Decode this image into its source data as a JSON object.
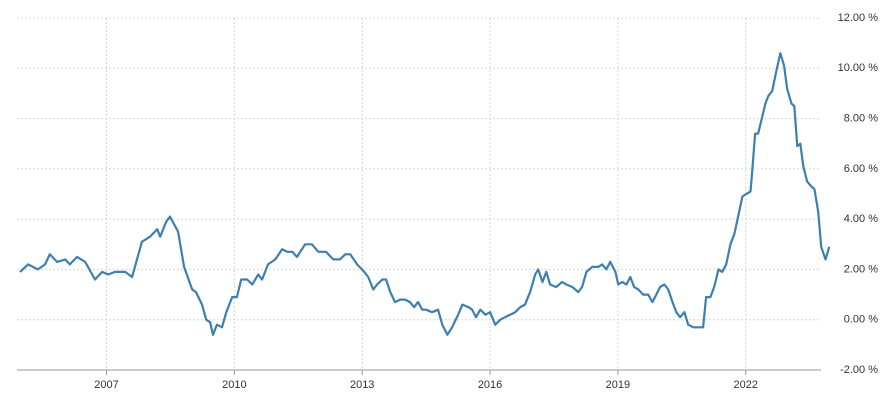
{
  "chart_data": {
    "type": "line",
    "color": "#3d7fae",
    "grid": true,
    "xlim": [
      2004.9,
      2024.0
    ],
    "xticks": [
      2007,
      2010,
      2013,
      2016,
      2019,
      2022
    ],
    "ylim": [
      -2,
      12
    ],
    "yticks": [
      {
        "value": -2,
        "label": "-2.00 %"
      },
      {
        "value": 0,
        "label": "0.00 %"
      },
      {
        "value": 2,
        "label": "2.00 %"
      },
      {
        "value": 4,
        "label": "4.00 %"
      },
      {
        "value": 6,
        "label": "6.00 %"
      },
      {
        "value": 8,
        "label": "8.00 %"
      },
      {
        "value": 10,
        "label": "10.00 %"
      },
      {
        "value": 12,
        "label": "12.00 %"
      }
    ],
    "x": [
      2004.97,
      2005.16,
      2005.39,
      2005.56,
      2005.67,
      2005.84,
      2006.03,
      2006.14,
      2006.31,
      2006.5,
      2006.73,
      2006.9,
      2007.04,
      2007.2,
      2007.44,
      2007.6,
      2007.83,
      2008.02,
      2008.19,
      2008.26,
      2008.4,
      2008.49,
      2008.68,
      2008.82,
      2009.01,
      2009.1,
      2009.24,
      2009.34,
      2009.43,
      2009.5,
      2009.59,
      2009.71,
      2009.81,
      2009.95,
      2010.06,
      2010.16,
      2010.3,
      2010.42,
      2010.56,
      2010.65,
      2010.79,
      2010.96,
      2011.12,
      2011.24,
      2011.36,
      2011.47,
      2011.66,
      2011.82,
      2011.97,
      2012.15,
      2012.32,
      2012.48,
      2012.6,
      2012.72,
      2012.88,
      2013.05,
      2013.14,
      2013.26,
      2013.35,
      2013.47,
      2013.56,
      2013.66,
      2013.77,
      2013.89,
      2014.01,
      2014.12,
      2014.22,
      2014.31,
      2014.41,
      2014.5,
      2014.64,
      2014.78,
      2014.88,
      2015.0,
      2015.11,
      2015.25,
      2015.35,
      2015.49,
      2015.58,
      2015.67,
      2015.77,
      2015.89,
      2016.0,
      2016.12,
      2016.24,
      2016.35,
      2016.47,
      2016.59,
      2016.71,
      2016.82,
      2016.94,
      2017.06,
      2017.13,
      2017.23,
      2017.32,
      2017.41,
      2017.55,
      2017.69,
      2017.79,
      2017.93,
      2018.07,
      2018.16,
      2018.26,
      2018.4,
      2018.54,
      2018.63,
      2018.73,
      2018.82,
      2018.94,
      2019.01,
      2019.1,
      2019.2,
      2019.29,
      2019.38,
      2019.48,
      2019.59,
      2019.71,
      2019.81,
      2019.9,
      2019.99,
      2020.09,
      2020.18,
      2020.28,
      2020.37,
      2020.46,
      2020.56,
      2020.65,
      2020.77,
      2020.89,
      2021.0,
      2021.07,
      2021.17,
      2021.26,
      2021.36,
      2021.45,
      2021.54,
      2021.64,
      2021.73,
      2021.82,
      2021.92,
      2022.01,
      2022.11,
      2022.15,
      2022.22,
      2022.29,
      2022.39,
      2022.46,
      2022.53,
      2022.62,
      2022.72,
      2022.81,
      2022.9,
      2022.97,
      2023.07,
      2023.14,
      2023.21,
      2023.28,
      2023.35,
      2023.44,
      2023.54,
      2023.61,
      2023.7,
      2023.77,
      2023.87,
      2023.96
    ],
    "y": [
      1.9,
      2.2,
      2.0,
      2.2,
      2.6,
      2.3,
      2.4,
      2.2,
      2.5,
      2.3,
      1.6,
      1.9,
      1.8,
      1.9,
      1.9,
      1.7,
      3.1,
      3.3,
      3.6,
      3.3,
      3.9,
      4.1,
      3.5,
      2.1,
      1.2,
      1.1,
      0.6,
      0.0,
      -0.1,
      -0.6,
      -0.2,
      -0.3,
      0.3,
      0.9,
      0.9,
      1.6,
      1.6,
      1.4,
      1.8,
      1.6,
      2.2,
      2.4,
      2.8,
      2.7,
      2.7,
      2.5,
      3.0,
      3.0,
      2.7,
      2.7,
      2.4,
      2.4,
      2.6,
      2.6,
      2.2,
      1.9,
      1.7,
      1.2,
      1.4,
      1.6,
      1.6,
      1.1,
      0.7,
      0.8,
      0.8,
      0.7,
      0.5,
      0.7,
      0.4,
      0.4,
      0.3,
      0.4,
      -0.2,
      -0.6,
      -0.3,
      0.2,
      0.6,
      0.5,
      0.4,
      0.1,
      0.4,
      0.2,
      0.3,
      -0.2,
      0.0,
      0.1,
      0.2,
      0.3,
      0.5,
      0.6,
      1.1,
      1.8,
      2.0,
      1.5,
      1.9,
      1.4,
      1.3,
      1.5,
      1.4,
      1.3,
      1.1,
      1.3,
      1.9,
      2.1,
      2.1,
      2.2,
      2.0,
      2.3,
      1.9,
      1.4,
      1.5,
      1.4,
      1.7,
      1.3,
      1.2,
      1.0,
      1.0,
      0.7,
      1.0,
      1.3,
      1.4,
      1.2,
      0.7,
      0.3,
      0.1,
      0.3,
      -0.2,
      -0.3,
      -0.3,
      -0.3,
      0.9,
      0.9,
      1.3,
      2.0,
      1.9,
      2.2,
      3.0,
      3.4,
      4.1,
      4.9,
      5.0,
      5.1,
      5.9,
      7.4,
      7.4,
      8.1,
      8.6,
      8.9,
      9.1,
      9.9,
      10.6,
      10.1,
      9.2,
      8.6,
      8.5,
      6.9,
      7.0,
      6.1,
      5.5,
      5.3,
      5.2,
      4.3,
      2.9,
      2.4,
      2.9
    ]
  }
}
